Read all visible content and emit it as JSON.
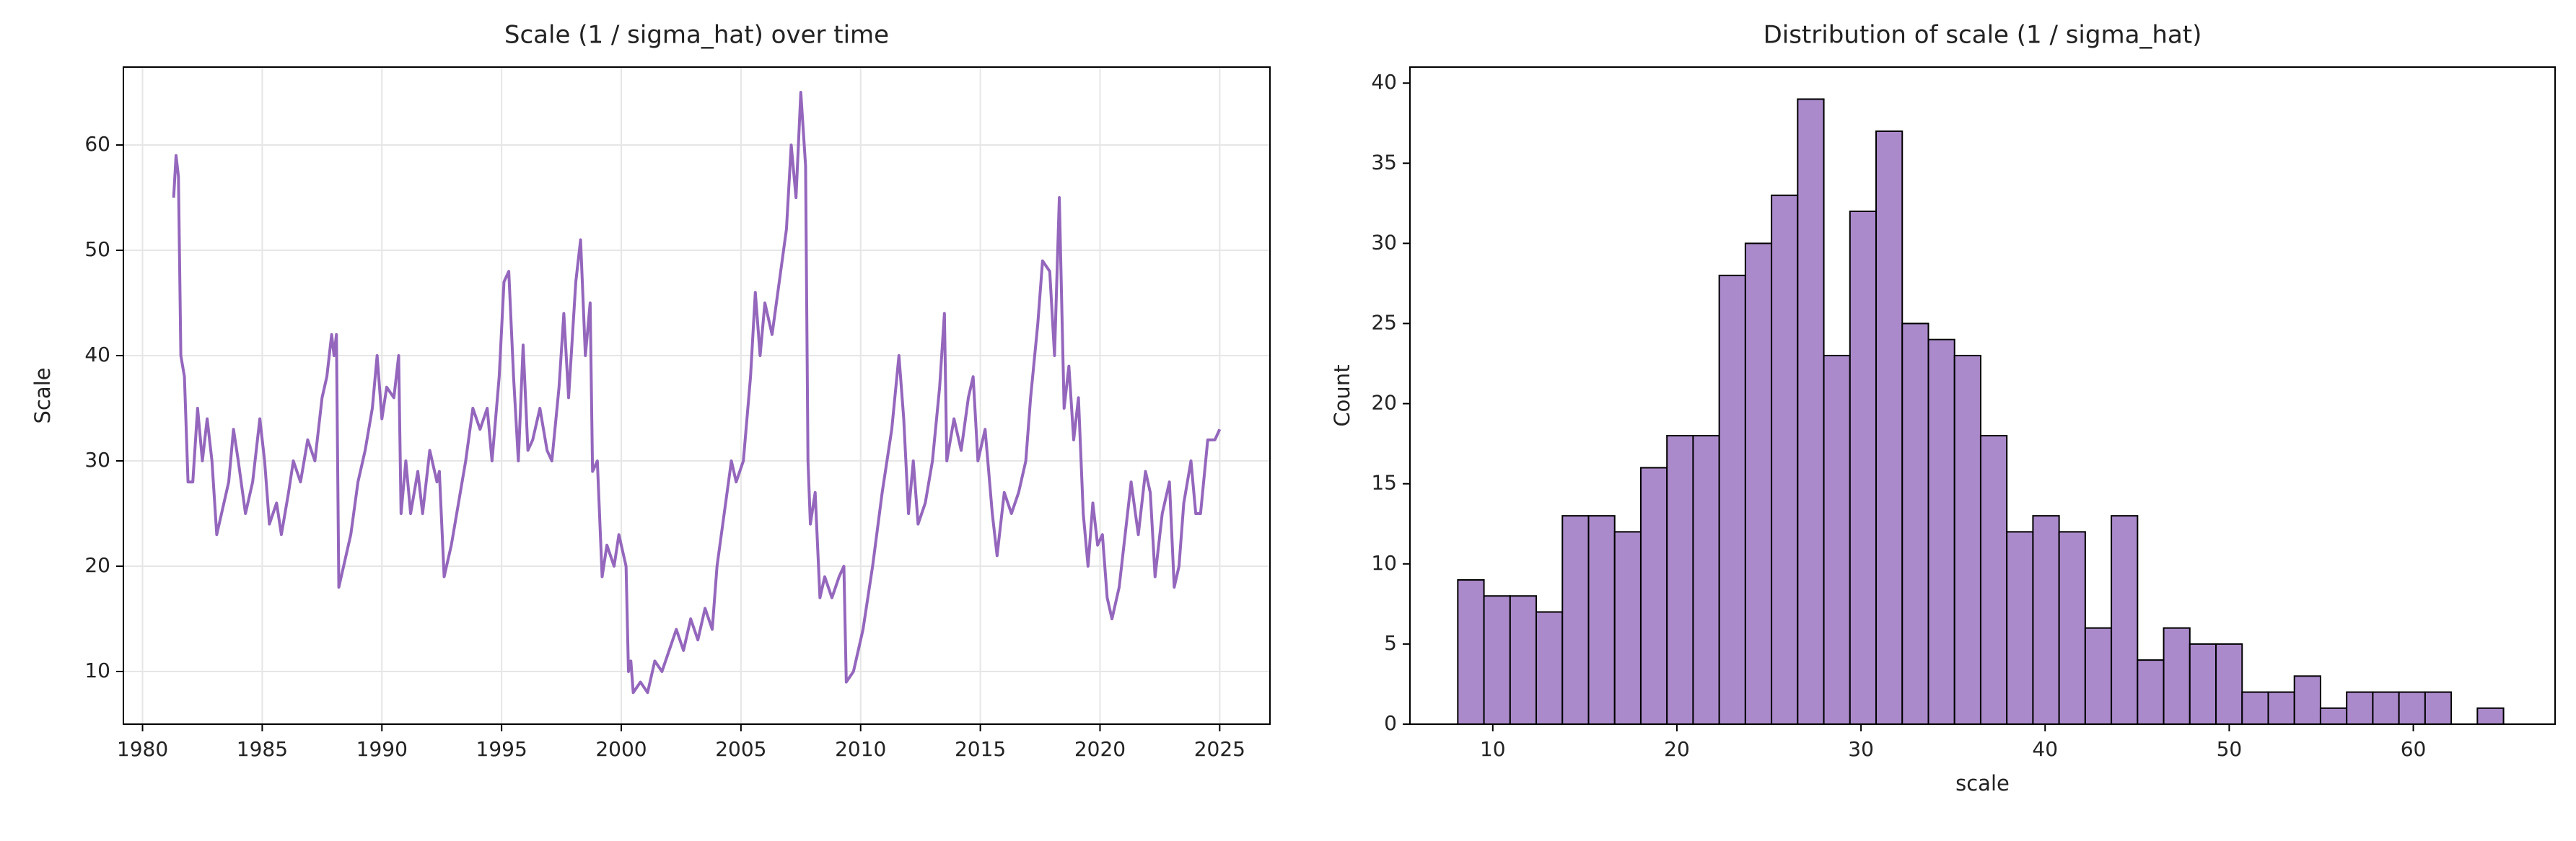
{
  "chart_data": [
    {
      "type": "line",
      "title": "Scale (1 / sigma_hat) over time",
      "ylabel": "Scale",
      "color": "#9467bd",
      "grid": true,
      "x": [
        1981.3,
        1981.4,
        1981.5,
        1981.6,
        1981.75,
        1981.9,
        1982.1,
        1982.3,
        1982.5,
        1982.7,
        1982.9,
        1983.1,
        1983.3,
        1983.6,
        1983.8,
        1984.0,
        1984.3,
        1984.6,
        1984.9,
        1985.1,
        1985.3,
        1985.6,
        1985.8,
        1986.1,
        1986.3,
        1986.6,
        1986.9,
        1987.2,
        1987.5,
        1987.7,
        1987.9,
        1988.0,
        1988.1,
        1988.2,
        1988.4,
        1988.7,
        1989.0,
        1989.3,
        1989.6,
        1989.8,
        1990.0,
        1990.2,
        1990.5,
        1990.7,
        1990.8,
        1991.0,
        1991.2,
        1991.5,
        1991.7,
        1992.0,
        1992.3,
        1992.4,
        1992.6,
        1992.9,
        1993.2,
        1993.5,
        1993.8,
        1994.1,
        1994.4,
        1994.6,
        1994.9,
        1995.1,
        1995.3,
        1995.5,
        1995.7,
        1995.9,
        1996.1,
        1996.3,
        1996.6,
        1996.9,
        1997.1,
        1997.4,
        1997.6,
        1997.8,
        1998.1,
        1998.3,
        1998.5,
        1998.7,
        1998.8,
        1999.0,
        1999.2,
        1999.4,
        1999.7,
        1999.9,
        2000.2,
        2000.3,
        2000.4,
        2000.5,
        2000.8,
        2001.1,
        2001.4,
        2001.7,
        2002.0,
        2002.3,
        2002.6,
        2002.9,
        2003.2,
        2003.5,
        2003.8,
        2004.0,
        2004.3,
        2004.6,
        2004.8,
        2005.1,
        2005.4,
        2005.6,
        2005.8,
        2006.0,
        2006.3,
        2006.6,
        2006.9,
        2007.1,
        2007.3,
        2007.5,
        2007.7,
        2007.8,
        2007.9,
        2008.1,
        2008.3,
        2008.5,
        2008.8,
        2009.1,
        2009.3,
        2009.4,
        2009.7,
        2010.1,
        2010.5,
        2010.9,
        2011.3,
        2011.6,
        2011.8,
        2012.0,
        2012.2,
        2012.4,
        2012.7,
        2013.0,
        2013.3,
        2013.5,
        2013.6,
        2013.9,
        2014.2,
        2014.5,
        2014.7,
        2014.9,
        2015.2,
        2015.5,
        2015.7,
        2016.0,
        2016.3,
        2016.6,
        2016.9,
        2017.1,
        2017.4,
        2017.6,
        2017.9,
        2018.1,
        2018.3,
        2018.5,
        2018.7,
        2018.9,
        2019.1,
        2019.3,
        2019.5,
        2019.7,
        2019.9,
        2020.1,
        2020.3,
        2020.5,
        2020.8,
        2021.1,
        2021.3,
        2021.6,
        2021.9,
        2022.1,
        2022.3,
        2022.6,
        2022.9,
        2023.1,
        2023.3,
        2023.5,
        2023.8,
        2024.0,
        2024.2,
        2024.5,
        2024.8,
        2025.0
      ],
      "values": [
        55,
        59,
        57,
        40,
        38,
        28,
        28,
        35,
        30,
        34,
        30,
        23,
        25,
        28,
        33,
        30,
        25,
        28,
        34,
        30,
        24,
        26,
        23,
        27,
        30,
        28,
        32,
        30,
        36,
        38,
        42,
        40,
        42,
        18,
        20,
        23,
        28,
        31,
        35,
        40,
        34,
        37,
        36,
        40,
        25,
        30,
        25,
        29,
        25,
        31,
        28,
        29,
        19,
        22,
        26,
        30,
        35,
        33,
        35,
        30,
        38,
        47,
        48,
        38,
        30,
        41,
        31,
        32,
        35,
        31,
        30,
        37,
        44,
        36,
        47,
        51,
        40,
        45,
        29,
        30,
        19,
        22,
        20,
        23,
        20,
        10,
        11,
        8,
        9,
        8,
        11,
        10,
        12,
        14,
        12,
        15,
        13,
        16,
        14,
        20,
        25,
        30,
        28,
        30,
        38,
        46,
        40,
        45,
        42,
        47,
        52,
        60,
        55,
        65,
        58,
        30,
        24,
        27,
        17,
        19,
        17,
        19,
        20,
        9,
        10,
        14,
        20,
        27,
        33,
        40,
        34,
        25,
        30,
        24,
        26,
        30,
        37,
        44,
        30,
        34,
        31,
        36,
        38,
        30,
        33,
        25,
        21,
        27,
        25,
        27,
        30,
        36,
        43,
        49,
        48,
        40,
        55,
        35,
        39,
        32,
        36,
        25,
        20,
        26,
        22,
        23,
        17,
        15,
        18,
        24,
        28,
        23,
        29,
        27,
        19,
        25,
        28,
        18,
        20,
        26,
        30,
        25,
        25,
        32,
        32,
        33
      ],
      "xlim": [
        1979.2,
        2027.1
      ],
      "xticks": [
        1980,
        1985,
        1990,
        1995,
        2000,
        2005,
        2010,
        2015,
        2020,
        2025
      ],
      "ylim": [
        5,
        67.4
      ],
      "yticks": [
        10,
        20,
        30,
        40,
        50,
        60
      ]
    },
    {
      "type": "histogram",
      "title": "Distribution of scale (1 / sigma_hat)",
      "xlabel": "scale",
      "ylabel": "Count",
      "color": "#ab8acb",
      "edgecolor": "#000000",
      "grid": false,
      "bins": [
        8.1,
        9.52,
        10.94,
        12.36,
        13.78,
        15.2,
        16.62,
        18.04,
        19.46,
        20.88,
        22.3,
        23.72,
        25.14,
        26.56,
        27.98,
        29.4,
        30.82,
        32.24,
        33.66,
        35.08,
        36.5,
        37.92,
        39.34,
        40.76,
        42.18,
        43.6,
        45.02,
        46.44,
        47.86,
        49.28,
        50.7,
        52.12,
        53.54,
        54.96,
        56.38,
        57.8,
        59.22,
        60.64,
        62.06,
        63.48,
        64.9
      ],
      "values": [
        9,
        8,
        8,
        7,
        13,
        13,
        12,
        16,
        18,
        18,
        28,
        30,
        33,
        39,
        23,
        32,
        37,
        25,
        24,
        23,
        18,
        12,
        13,
        12,
        6,
        13,
        4,
        6,
        5,
        5,
        2,
        2,
        3,
        1,
        2,
        2,
        2,
        2,
        0,
        1
      ],
      "xlim": [
        5.5,
        67.7
      ],
      "xticks": [
        10,
        20,
        30,
        40,
        50,
        60
      ],
      "ylim": [
        0,
        41
      ],
      "yticks": [
        0,
        5,
        10,
        15,
        20,
        25,
        30,
        35,
        40
      ]
    }
  ]
}
